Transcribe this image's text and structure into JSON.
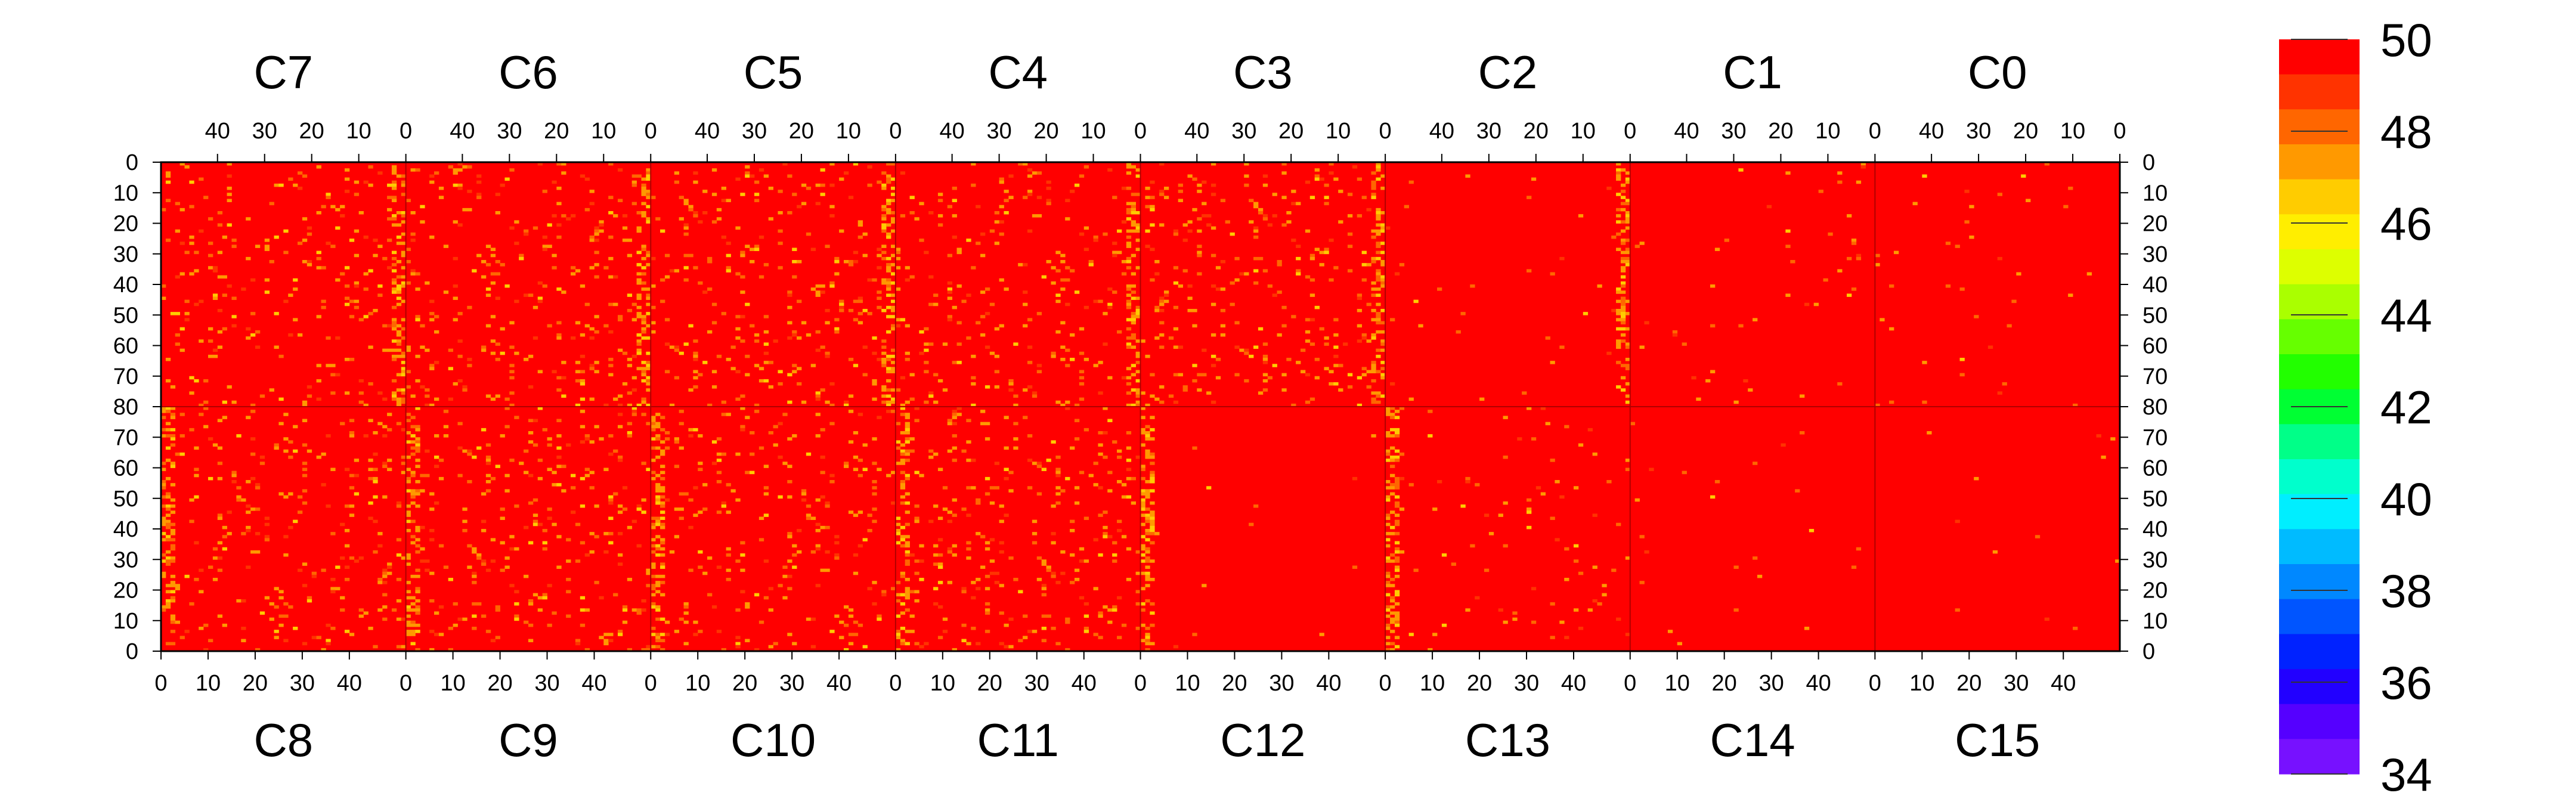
{
  "chart_data": {
    "type": "heatmap",
    "title": "",
    "xlabel": "",
    "ylabel": "",
    "value_range": [
      34,
      50
    ],
    "colorbar": {
      "ticks": [
        50,
        48,
        46,
        44,
        42,
        40,
        38,
        36,
        34
      ],
      "colors": [
        "#ff0000",
        "#ff3300",
        "#ff6600",
        "#ff9900",
        "#ffcc00",
        "#ffee00",
        "#ddff00",
        "#aaff00",
        "#66ff00",
        "#22ff00",
        "#00ff33",
        "#00ff88",
        "#00ffcc",
        "#00eeff",
        "#00bbff",
        "#0088ff",
        "#0055ff",
        "#0022ff",
        "#2200ff",
        "#5500ff",
        "#7711ff"
      ]
    },
    "top_chips": {
      "labels": [
        "C7",
        "C6",
        "C5",
        "C4",
        "C3",
        "C2",
        "C1",
        "C0"
      ],
      "column_ticks": [
        "40",
        "30",
        "20",
        "10",
        "0"
      ]
    },
    "bottom_chips": {
      "labels": [
        "C8",
        "C9",
        "C10",
        "C11",
        "C12",
        "C13",
        "C14",
        "C15"
      ],
      "column_ticks": [
        "0",
        "10",
        "20",
        "30",
        "40"
      ]
    },
    "row_ticks_upper": [
      "0",
      "10",
      "20",
      "30",
      "40",
      "50",
      "60",
      "70",
      "80"
    ],
    "row_ticks_lower": [
      "70",
      "60",
      "50",
      "40",
      "30",
      "20",
      "10",
      "0"
    ],
    "columns_per_chip": 52,
    "rows_per_half": 80,
    "dominant_value": 50,
    "column_edge_value": 48.5,
    "noise_value_low": 47
  }
}
